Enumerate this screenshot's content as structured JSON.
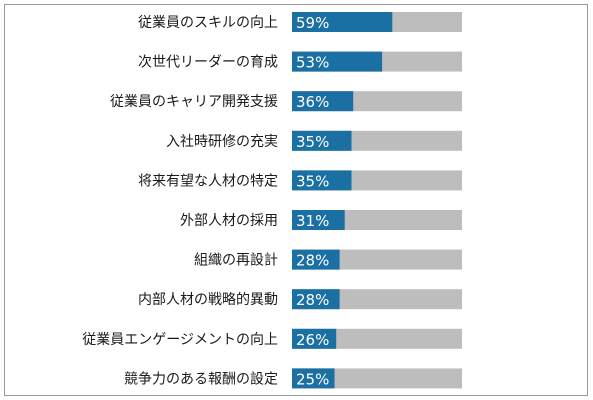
{
  "chart_data": {
    "type": "bar",
    "orientation": "horizontal",
    "title": "",
    "xlabel": "",
    "ylabel": "",
    "xlim": [
      0,
      100
    ],
    "grid": false,
    "legend": "none",
    "categories": [
      "従業員のスキルの向上",
      "次世代リーダーの育成",
      "従業員のキャリア開発支援",
      "入社時研修の充実",
      "将来有望な人材の特定",
      "外部人材の採用",
      "組織の再設計",
      "内部人材の戦略的異動",
      "従業員エンゲージメントの向上",
      "競争力のある報酬の設定"
    ],
    "values": [
      59,
      53,
      36,
      35,
      35,
      31,
      28,
      28,
      26,
      25
    ],
    "value_labels": [
      "59%",
      "53%",
      "36%",
      "35%",
      "35%",
      "31%",
      "28%",
      "28%",
      "26%",
      "25%"
    ],
    "colors": {
      "bar": "#1a6fa3",
      "track": "#bdbdbd",
      "label_text": "#ffffff"
    }
  }
}
